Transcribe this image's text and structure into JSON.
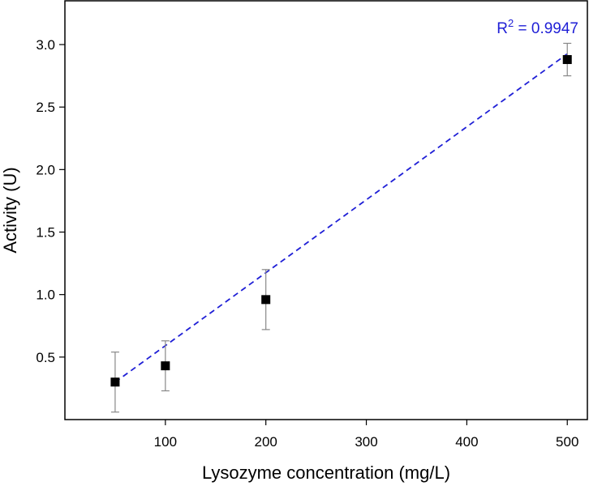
{
  "chart_data": {
    "type": "scatter",
    "xlabel": "Lysozyme concentration (mg/L)",
    "ylabel": "Activity (U)",
    "xlim": [
      0,
      520
    ],
    "ylim": [
      0.0,
      3.35
    ],
    "x_ticks": [
      100,
      200,
      300,
      400,
      500
    ],
    "x_tick_labels": [
      "100",
      "200",
      "300",
      "400",
      "500"
    ],
    "y_ticks": [
      0.5,
      1.0,
      1.5,
      2.0,
      2.5,
      3.0
    ],
    "y_tick_labels": [
      "0.5",
      "1.0",
      "1.5",
      "2.0",
      "2.5",
      "3.0"
    ],
    "grid": false,
    "series": [
      {
        "x": [
          50,
          100,
          200,
          500
        ],
        "y": [
          0.3,
          0.43,
          0.96,
          2.88
        ],
        "yerr": [
          0.24,
          0.2,
          0.24,
          0.13
        ],
        "marker": "square",
        "color": "#000000",
        "errorbar_color": "#888888"
      }
    ],
    "fit": {
      "type": "linear",
      "style": "dashed",
      "color": "#1f1fd6",
      "x_range": [
        50,
        500
      ],
      "slope": 0.005836,
      "intercept": 0.0076,
      "label_base": "R",
      "label_sup": "2",
      "label_rest": " = 0.9947"
    }
  }
}
